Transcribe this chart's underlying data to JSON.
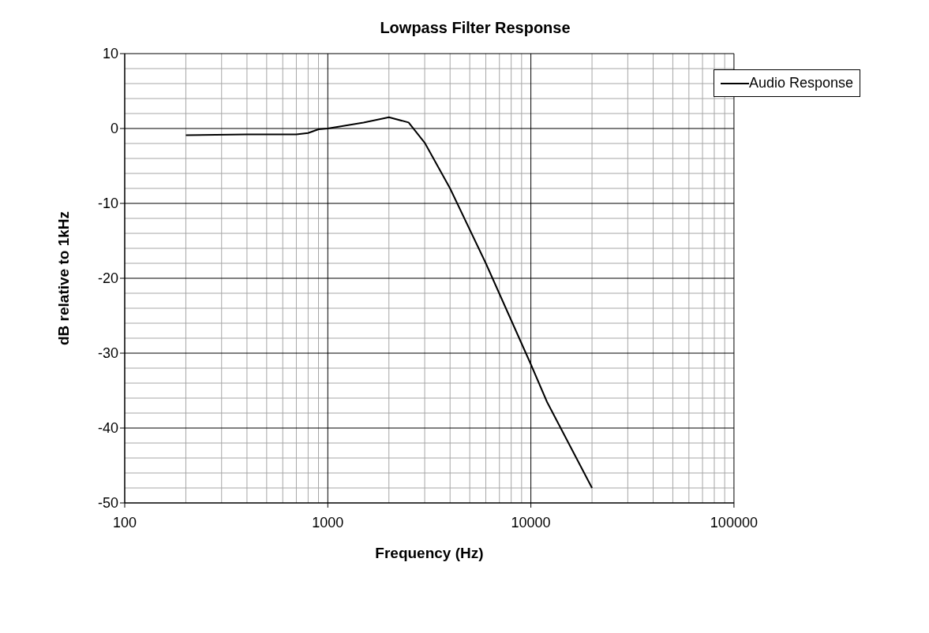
{
  "chart_data": {
    "type": "line",
    "title": "Lowpass Filter Response",
    "xlabel": "Frequency (Hz)",
    "ylabel": "dB relative to 1kHz",
    "log": "x",
    "xlim": [
      100,
      100000
    ],
    "xticks": [
      100,
      1000,
      10000,
      100000
    ],
    "ylim": [
      -50,
      10
    ],
    "yticks": [
      -50,
      -40,
      -30,
      -20,
      -10,
      0,
      10
    ],
    "grid": true,
    "legend": "top right",
    "marker": "none",
    "line_style": "solid",
    "series": [
      {
        "name": "Audio Response",
        "color": "#000000",
        "x": [
          200,
          400,
          700,
          800,
          900,
          1000,
          1500,
          2000,
          2500,
          3000,
          4000,
          6000,
          10000,
          12000,
          20000
        ],
        "values": [
          -0.9,
          -0.8,
          -0.8,
          -0.6,
          -0.1,
          0,
          0.8,
          1.5,
          0.8,
          -1.9,
          -8,
          -18,
          -31.5,
          -36.5,
          -48
        ]
      }
    ]
  }
}
